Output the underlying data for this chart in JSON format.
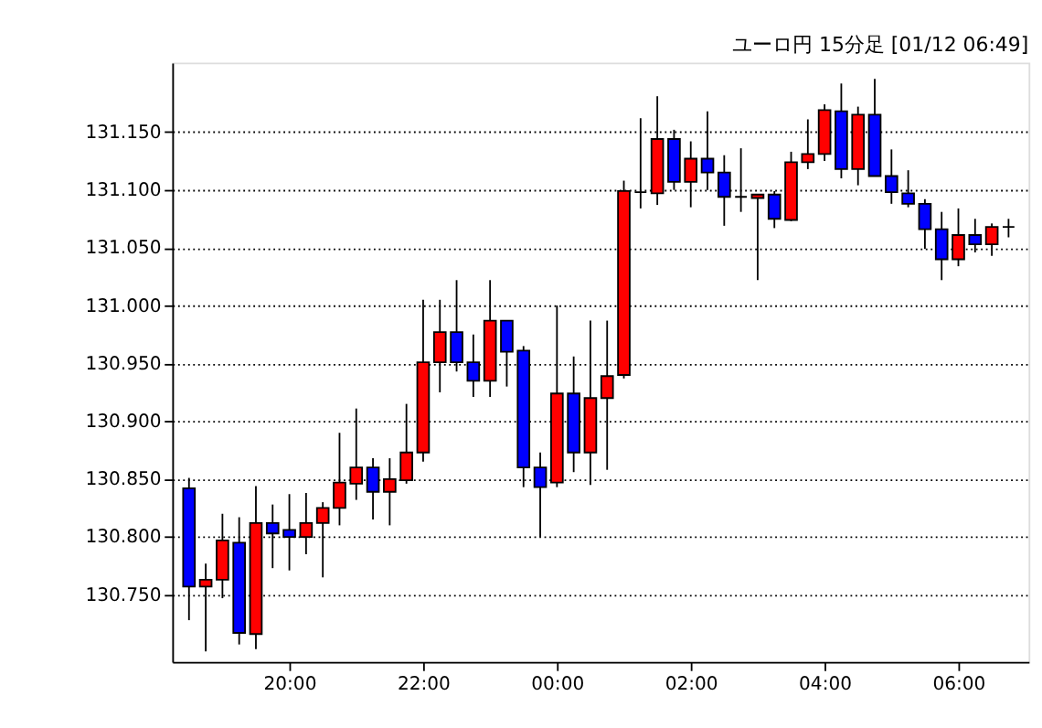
{
  "chart_data": {
    "type": "candlestick",
    "title": "ユーロ円 15分足 [01/12 06:49]",
    "x": [
      "2000-01-11T18:30",
      "2000-01-11T18:45",
      "2000-01-11T19:00",
      "2000-01-11T19:15",
      "2000-01-11T19:30",
      "2000-01-11T19:45",
      "2000-01-11T20:00",
      "2000-01-11T20:15",
      "2000-01-11T20:30",
      "2000-01-11T20:45",
      "2000-01-11T21:00",
      "2000-01-11T21:15",
      "2000-01-11T21:30",
      "2000-01-11T21:45",
      "2000-01-11T22:00",
      "2000-01-11T22:15",
      "2000-01-11T22:30",
      "2000-01-11T22:45",
      "2000-01-11T23:00",
      "2000-01-11T23:15",
      "2000-01-11T23:30",
      "2000-01-11T23:45",
      "2000-01-12T00:00",
      "2000-01-12T00:15",
      "2000-01-12T00:30",
      "2000-01-12T00:45",
      "2000-01-12T01:00",
      "2000-01-12T01:15",
      "2000-01-12T01:30",
      "2000-01-12T01:45",
      "2000-01-12T02:00",
      "2000-01-12T02:15",
      "2000-01-12T02:30",
      "2000-01-12T02:45",
      "2000-01-12T03:00",
      "2000-01-12T03:15",
      "2000-01-12T03:30",
      "2000-01-12T03:45",
      "2000-01-12T04:00",
      "2000-01-12T04:15",
      "2000-01-12T04:30",
      "2000-01-12T04:45",
      "2000-01-12T05:00",
      "2000-01-12T05:15",
      "2000-01-12T05:30",
      "2000-01-12T05:45",
      "2000-01-12T06:00",
      "2000-01-12T06:15",
      "2000-01-12T06:30",
      "2000-01-12T06:45"
    ],
    "ohlc": [
      [
        130.842,
        130.851,
        130.728,
        130.757
      ],
      [
        130.757,
        130.777,
        130.701,
        130.763
      ],
      [
        130.763,
        130.82,
        130.747,
        130.797
      ],
      [
        130.795,
        130.817,
        130.707,
        130.717
      ],
      [
        130.716,
        130.844,
        130.703,
        130.812
      ],
      [
        130.812,
        130.828,
        130.773,
        130.803
      ],
      [
        130.806,
        130.837,
        130.771,
        130.8
      ],
      [
        130.8,
        130.838,
        130.785,
        130.812
      ],
      [
        130.812,
        130.83,
        130.765,
        130.825
      ],
      [
        130.825,
        130.89,
        130.81,
        130.847
      ],
      [
        130.846,
        130.911,
        130.832,
        130.86
      ],
      [
        130.86,
        130.868,
        130.815,
        130.839
      ],
      [
        130.839,
        130.868,
        130.81,
        130.85
      ],
      [
        130.849,
        130.915,
        130.846,
        130.873
      ],
      [
        130.873,
        131.005,
        130.865,
        130.951
      ],
      [
        130.951,
        131.005,
        130.925,
        130.977
      ],
      [
        130.977,
        131.022,
        130.943,
        130.951
      ],
      [
        130.951,
        130.975,
        130.921,
        130.935
      ],
      [
        130.935,
        131.022,
        130.921,
        130.987
      ],
      [
        130.987,
        130.987,
        130.93,
        130.96
      ],
      [
        130.961,
        130.965,
        130.843,
        130.86
      ],
      [
        130.86,
        130.873,
        130.8,
        130.843
      ],
      [
        130.847,
        131.0,
        130.843,
        130.924
      ],
      [
        130.924,
        130.956,
        130.856,
        130.873
      ],
      [
        130.873,
        130.987,
        130.845,
        130.92
      ],
      [
        130.92,
        130.987,
        130.858,
        130.939
      ],
      [
        130.94,
        131.108,
        130.937,
        131.099
      ],
      [
        131.098,
        131.162,
        131.084,
        131.098
      ],
      [
        131.097,
        131.181,
        131.087,
        131.144
      ],
      [
        131.144,
        131.152,
        131.1,
        131.107
      ],
      [
        131.107,
        131.142,
        131.085,
        131.127
      ],
      [
        131.127,
        131.168,
        131.1,
        131.115
      ],
      [
        131.115,
        131.13,
        131.069,
        131.094
      ],
      [
        131.094,
        131.136,
        131.081,
        131.094
      ],
      [
        131.093,
        131.096,
        131.022,
        131.096
      ],
      [
        131.096,
        131.099,
        131.067,
        131.075
      ],
      [
        131.074,
        131.133,
        131.073,
        131.124
      ],
      [
        131.124,
        131.161,
        131.118,
        131.131
      ],
      [
        131.131,
        131.174,
        131.125,
        131.169
      ],
      [
        131.168,
        131.192,
        131.11,
        131.118
      ],
      [
        131.118,
        131.172,
        131.104,
        131.165
      ],
      [
        131.165,
        131.196,
        131.112,
        131.112
      ],
      [
        131.112,
        131.135,
        131.088,
        131.098
      ],
      [
        131.097,
        131.117,
        131.085,
        131.088
      ],
      [
        131.088,
        131.092,
        131.049,
        131.066
      ],
      [
        131.066,
        131.081,
        131.022,
        131.04
      ],
      [
        131.04,
        131.084,
        131.034,
        131.061
      ],
      [
        131.061,
        131.075,
        131.046,
        131.053
      ],
      [
        131.053,
        131.071,
        131.043,
        131.068
      ],
      [
        131.068,
        131.075,
        131.059,
        131.068
      ]
    ],
    "colors": [
      "#0000ff",
      "#ff0000",
      "#ff0000",
      "#0000ff",
      "#ff0000",
      "#0000ff",
      "#0000ff",
      "#ff0000",
      "#ff0000",
      "#ff0000",
      "#ff0000",
      "#0000ff",
      "#ff0000",
      "#ff0000",
      "#ff0000",
      "#ff0000",
      "#0000ff",
      "#0000ff",
      "#ff0000",
      "#0000ff",
      "#0000ff",
      "#0000ff",
      "#ff0000",
      "#0000ff",
      "#ff0000",
      "#ff0000",
      "#ff0000",
      "#000000",
      "#ff0000",
      "#0000ff",
      "#ff0000",
      "#0000ff",
      "#0000ff",
      "#000000",
      "#ff0000",
      "#0000ff",
      "#ff0000",
      "#ff0000",
      "#ff0000",
      "#0000ff",
      "#ff0000",
      "#0000ff",
      "#0000ff",
      "#0000ff",
      "#0000ff",
      "#0000ff",
      "#ff0000",
      "#0000ff",
      "#ff0000",
      "#000000"
    ],
    "xlim": [
      "2000-01-11T18:15",
      "2000-01-12T07:03"
    ],
    "xticks": [
      {
        "value": "2000-01-11T20:00",
        "label": "20:00"
      },
      {
        "value": "2000-01-11T22:00",
        "label": "22:00"
      },
      {
        "value": "2000-01-12T00:00",
        "label": "00:00"
      },
      {
        "value": "2000-01-12T02:00",
        "label": "02:00"
      },
      {
        "value": "2000-01-12T04:00",
        "label": "04:00"
      },
      {
        "value": "2000-01-12T06:00",
        "label": "06:00"
      }
    ],
    "ylim": [
      130.692,
      131.21
    ],
    "yticks": [
      {
        "value": 130.75,
        "label": "130.750"
      },
      {
        "value": 130.8,
        "label": "130.800"
      },
      {
        "value": 130.85,
        "label": "130.850"
      },
      {
        "value": 130.9,
        "label": "130.900"
      },
      {
        "value": 130.95,
        "label": "130.950"
      },
      {
        "value": 131.0,
        "label": "131.000"
      },
      {
        "value": 131.05,
        "label": "131.050"
      },
      {
        "value": 131.1,
        "label": "131.100"
      },
      {
        "value": 131.15,
        "label": "131.150"
      }
    ],
    "grid": "y"
  }
}
